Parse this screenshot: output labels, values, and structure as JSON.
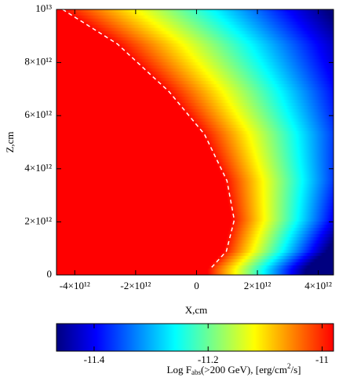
{
  "chart_data": {
    "type": "heatmap",
    "x_label": "X,cm",
    "y_label": "Z,cm",
    "xlim": [
      -4600000000000.0,
      4500000000000.0
    ],
    "ylim": [
      0,
      10000000000000.0
    ],
    "xticks": [
      {
        "value": -4000000000000.0,
        "label": "-4×10¹²"
      },
      {
        "value": -2000000000000.0,
        "label": "-2×10¹²"
      },
      0,
      {
        "value": 2000000000000.0,
        "label": "2×10¹²"
      },
      {
        "value": 4000000000000.0,
        "label": "4×10¹²"
      }
    ],
    "yticks": [
      0,
      {
        "value": 2000000000000.0,
        "label": "2×10¹²"
      },
      {
        "value": 4000000000000.0,
        "label": "4×10¹²"
      },
      {
        "value": 6000000000000.0,
        "label": "6×10¹²"
      },
      {
        "value": 8000000000000.0,
        "label": "8×10¹²"
      },
      {
        "value": 10000000000000.0,
        "label": "10¹³"
      }
    ],
    "colormap": [
      "#000080",
      "#0000ff",
      "#0080ff",
      "#00ffff",
      "#80ff80",
      "#ffff00",
      "#ff8000",
      "#ff0000"
    ],
    "contour": {
      "color": "#ffffff",
      "x": [
        -4400000000000.0,
        -2600000000000.0,
        -900000000000.0,
        260000000000.0,
        1000000000000.0,
        1240000000000.0,
        980000000000.0,
        460000000000.0
      ],
      "y": [
        10000000000000.0,
        8700000000000.0,
        6900000000000.0,
        5300000000000.0,
        3550000000000.0,
        2070000000000.0,
        890000000000.0,
        240000000000.0
      ]
    },
    "colorbar": {
      "clim": [
        -11.466,
        -10.98
      ],
      "ticks": [
        -11.4,
        -11.2,
        -11
      ],
      "label": [
        "Log F",
        "abs",
        "(>200 GeV), [erg/cm",
        "2",
        "/s]"
      ]
    }
  }
}
